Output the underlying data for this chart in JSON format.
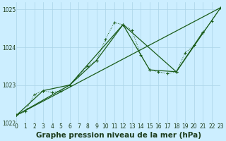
{
  "title": "Graphe pression niveau de la mer (hPa)",
  "bg_color": "#cceeff",
  "grid_color": "#aad4e8",
  "line_color": "#1a5c1a",
  "x_min": 0,
  "x_max": 23,
  "y_min": 1022.0,
  "y_max": 1025.2,
  "series": [
    {
      "x": [
        0,
        1,
        2,
        3,
        4,
        5,
        6,
        7,
        8,
        9,
        10,
        11,
        12,
        13,
        14,
        15,
        16,
        17,
        18,
        19,
        20,
        21,
        22,
        23
      ],
      "y": [
        1022.2,
        1022.3,
        1022.75,
        1022.85,
        1022.8,
        1022.85,
        1023.0,
        1023.25,
        1023.5,
        1023.65,
        1024.2,
        1024.65,
        1024.6,
        1024.45,
        1023.8,
        1023.4,
        1023.35,
        1023.3,
        1023.35,
        1023.85,
        1024.05,
        1024.4,
        1024.7,
        1025.05
      ],
      "linestyle": "dotted",
      "marker": "+"
    },
    {
      "x": [
        0,
        3,
        6,
        9,
        12,
        15,
        18,
        21
      ],
      "y": [
        1022.2,
        1022.85,
        1023.0,
        1023.65,
        1024.6,
        1023.4,
        1023.35,
        1024.4
      ],
      "linestyle": "solid",
      "marker": "+"
    },
    {
      "x": [
        0,
        23
      ],
      "y": [
        1022.2,
        1025.05
      ],
      "linestyle": "solid",
      "marker": null
    },
    {
      "x": [
        0,
        6,
        12,
        18,
        23
      ],
      "y": [
        1022.2,
        1023.0,
        1024.6,
        1023.35,
        1025.05
      ],
      "linestyle": "solid",
      "marker": null
    }
  ],
  "xticks": [
    0,
    1,
    2,
    3,
    4,
    5,
    6,
    7,
    8,
    9,
    10,
    11,
    12,
    13,
    14,
    15,
    16,
    17,
    18,
    19,
    20,
    21,
    22,
    23
  ],
  "yticks": [
    1022,
    1023,
    1024,
    1025
  ],
  "tick_fontsize": 5.5,
  "label_fontsize": 7.5
}
